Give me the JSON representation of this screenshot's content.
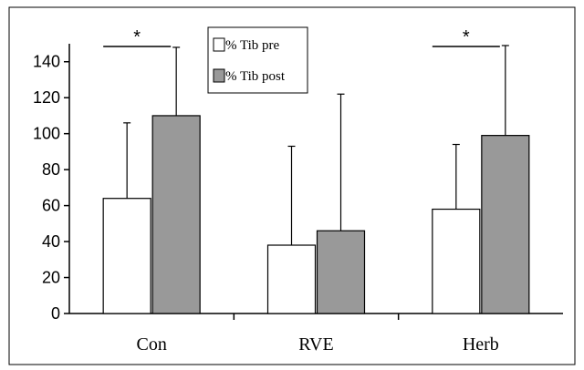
{
  "chart_data": {
    "type": "bar",
    "title": "",
    "xlabel": "",
    "ylabel": "",
    "ylim": [
      0,
      150
    ],
    "yticks": [
      0,
      20,
      40,
      60,
      80,
      100,
      120,
      140
    ],
    "categories": [
      "Con",
      "RVE",
      "Herb"
    ],
    "series": [
      {
        "name": "% Tib pre",
        "values": [
          64,
          38,
          58
        ],
        "error": [
          42,
          55,
          36
        ],
        "color": "#ffffff"
      },
      {
        "name": "% Tib post",
        "values": [
          110,
          46,
          99
        ],
        "error": [
          38,
          76,
          50
        ],
        "color": "#999999"
      }
    ],
    "significance": [
      {
        "category": "Con",
        "label": "*"
      },
      {
        "category": "Herb",
        "label": "*"
      }
    ],
    "legend": "top-center",
    "grid": false
  }
}
